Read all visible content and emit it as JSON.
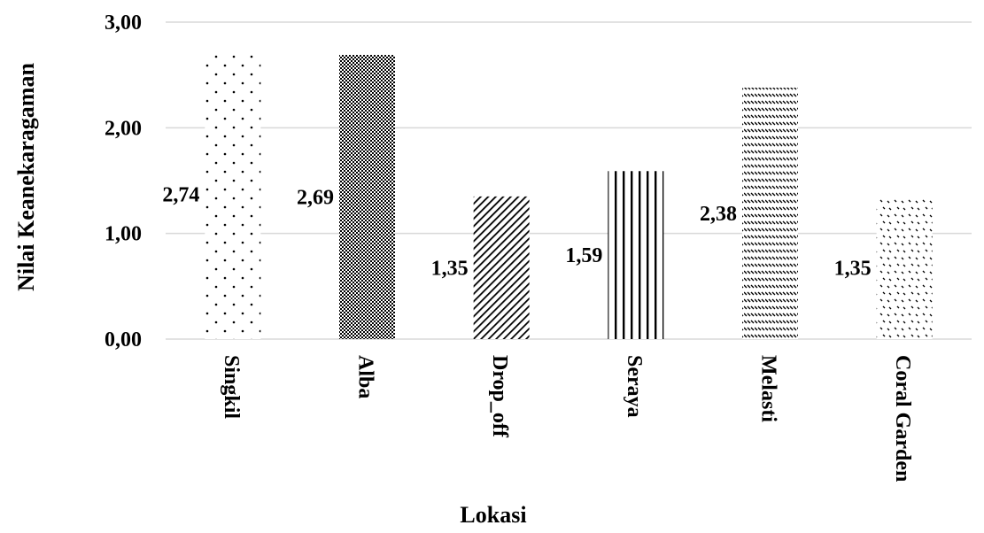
{
  "chart_data": {
    "type": "bar",
    "title": "",
    "xlabel": "Lokasi",
    "ylabel": "Nilai Keanekaragaman",
    "categories": [
      "Singkil",
      "Alba",
      "Drop_off",
      "Seraya",
      "Melasti",
      "Coral Garden"
    ],
    "values": [
      2.74,
      2.69,
      1.35,
      1.59,
      2.38,
      1.35
    ],
    "data_labels": [
      "2,74",
      "2,69",
      "1,35",
      "1,59",
      "2,38",
      "1,35"
    ],
    "ylim": [
      0,
      3
    ],
    "yticks": [
      0,
      1,
      2,
      3
    ],
    "ytick_labels": [
      "0,00",
      "1,00",
      "2,00",
      "3,00"
    ],
    "grid": true,
    "legend": "none",
    "bar_patterns": [
      "dots",
      "checker",
      "diagonal-hatch",
      "vertical-lines",
      "wave-hatch",
      "scatter-ticks"
    ],
    "bar_color": "#000000"
  }
}
